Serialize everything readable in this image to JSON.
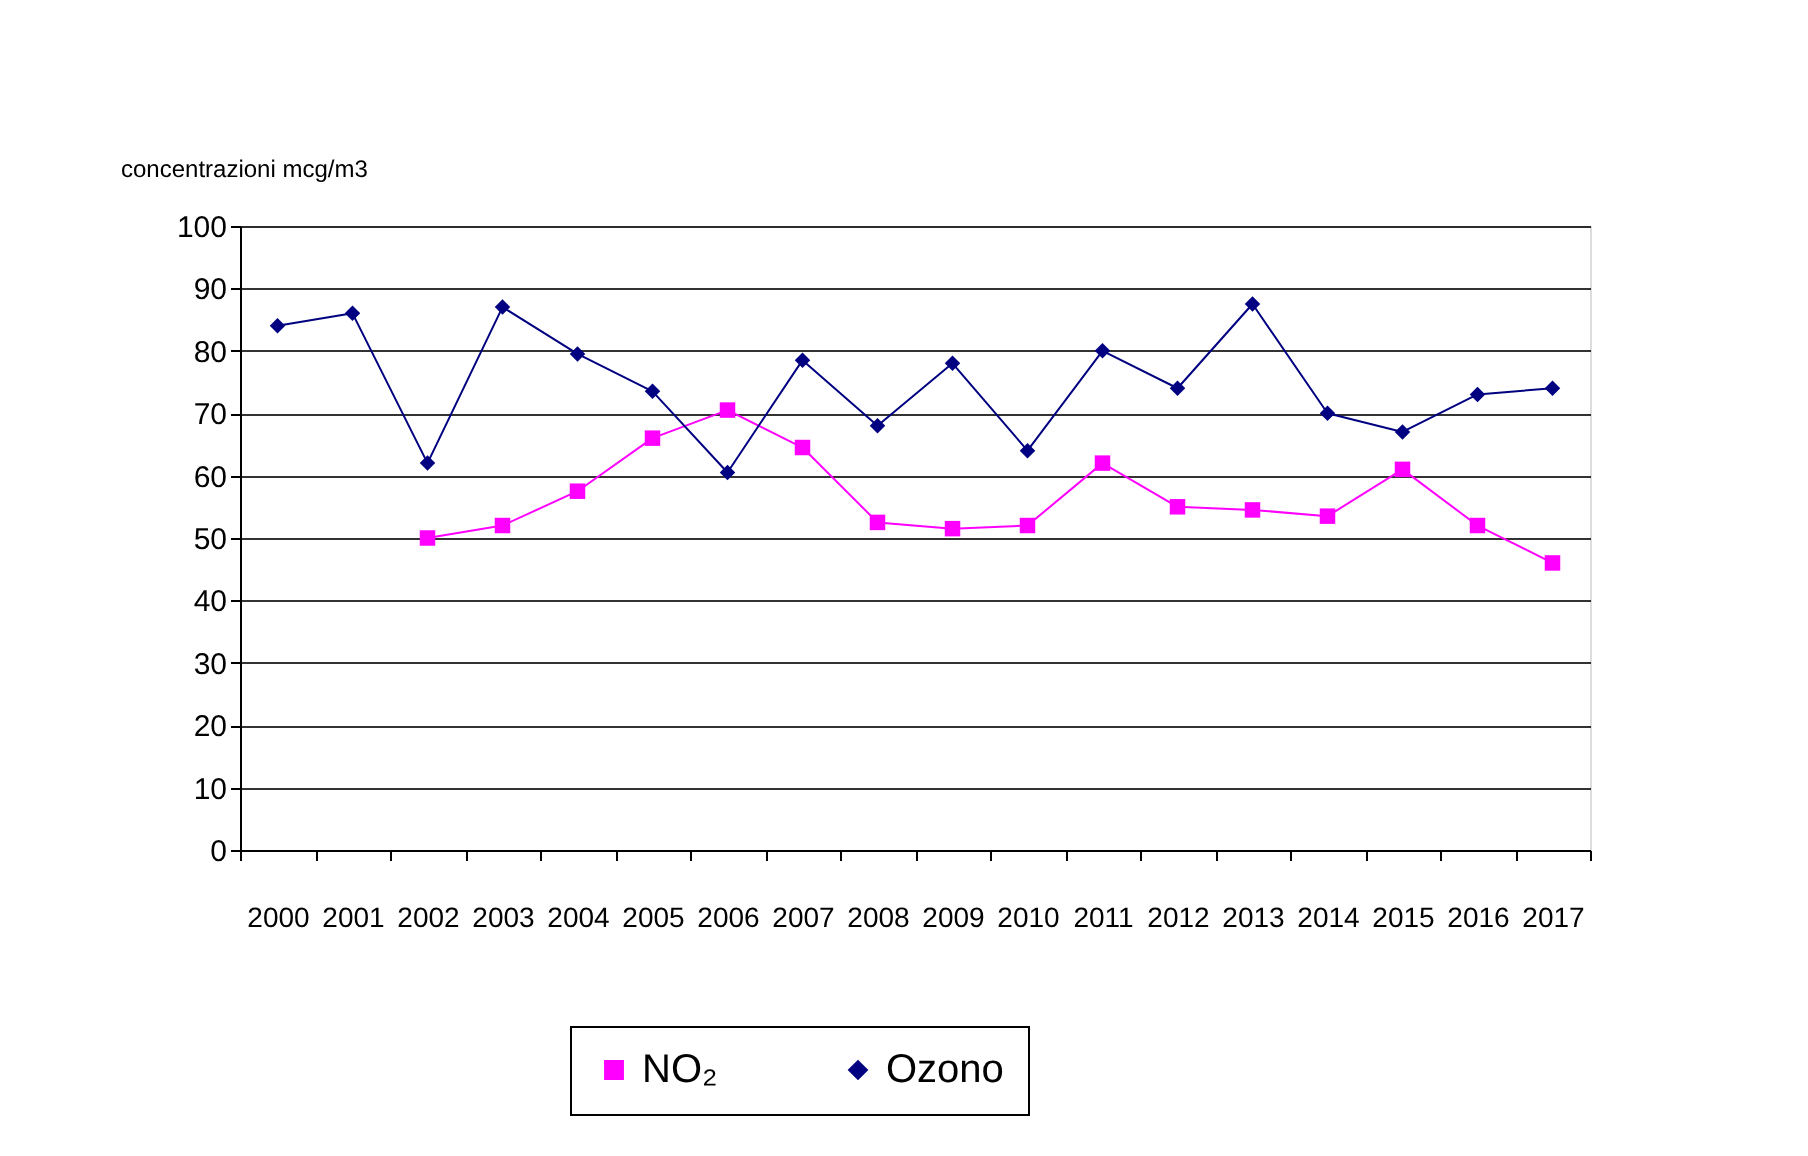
{
  "chart_data": {
    "type": "line",
    "ylabel": "concentrazioni mcg/m3",
    "categories": [
      "2000",
      "2001",
      "2002",
      "2003",
      "2004",
      "2005",
      "2006",
      "2007",
      "2008",
      "2009",
      "2010",
      "2011",
      "2012",
      "2013",
      "2014",
      "2015",
      "2016",
      "2017"
    ],
    "series": [
      {
        "name": "NO₂",
        "color": "#ff00ff",
        "marker": "square",
        "values": [
          null,
          null,
          50,
          52,
          57.5,
          66,
          70.5,
          64.5,
          52.5,
          51.5,
          52,
          62,
          55,
          54.5,
          53.5,
          61,
          52,
          46
        ]
      },
      {
        "name": "Ozono",
        "color": "#000080",
        "marker": "diamond",
        "values": [
          84,
          86,
          62,
          87,
          79.5,
          73.5,
          60.5,
          78.5,
          68,
          78,
          64,
          80,
          74,
          87.5,
          70,
          67,
          73,
          74
        ]
      }
    ],
    "ylim": [
      0,
      100
    ],
    "yticks": [
      0,
      10,
      20,
      30,
      40,
      50,
      60,
      70,
      80,
      90,
      100
    ],
    "grid": "y",
    "legend": "bottom",
    "line_style": "solid"
  }
}
